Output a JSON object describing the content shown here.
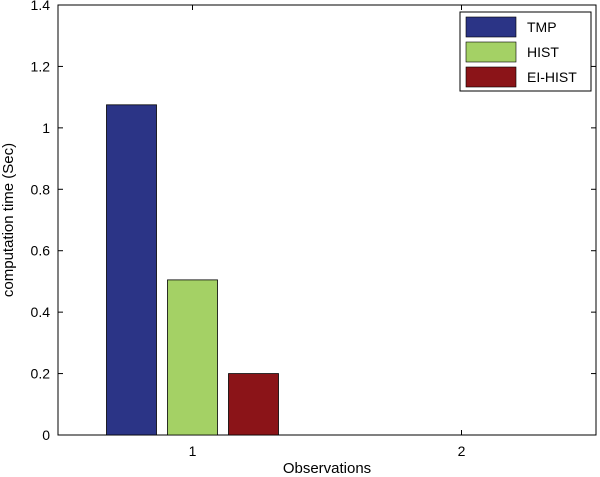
{
  "chart_data": {
    "type": "bar",
    "categories": [
      "1",
      "2"
    ],
    "series": [
      {
        "name": "TMP",
        "values": [
          1.075,
          0
        ],
        "color": "#2b3486"
      },
      {
        "name": "HIST",
        "values": [
          0.505,
          0
        ],
        "color": "#a4d165"
      },
      {
        "name": "EI-HIST",
        "values": [
          0.2,
          0
        ],
        "color": "#8b1418"
      }
    ],
    "xlabel": "Observations",
    "ylabel": "computation time (Sec)",
    "ylim": [
      0,
      1.4
    ],
    "yticks": [
      "0",
      "0.2",
      "0.4",
      "0.6",
      "0.8",
      "1",
      "1.2",
      "1.4"
    ],
    "grid": false,
    "legend_position": "top-right"
  }
}
